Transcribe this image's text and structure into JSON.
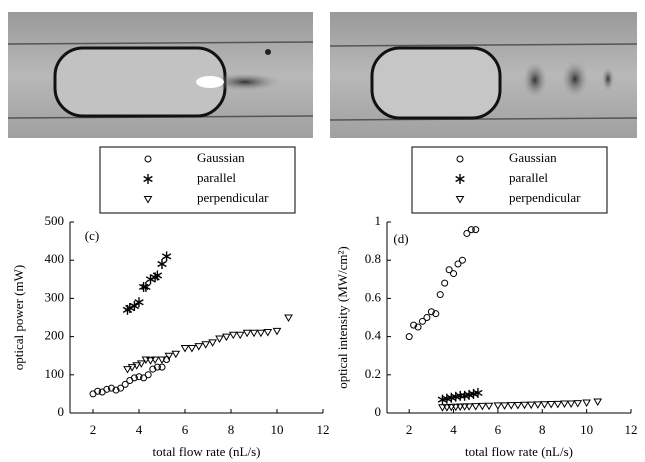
{
  "chart_data": [
    {
      "type": "scatter",
      "annotation": "(c)",
      "x_label": "total flow rate (nL/s)",
      "y_label": "optical power (mW)",
      "xlim": [
        1,
        12
      ],
      "ylim": [
        0,
        500
      ],
      "xticks": [
        2,
        4,
        6,
        8,
        10,
        12
      ],
      "yticks": [
        0,
        100,
        200,
        300,
        400,
        500
      ],
      "grid": false,
      "series": [
        {
          "name": "Gaussian",
          "color": "#000000",
          "marker": "circle",
          "x": [
            2,
            2.2,
            2.4,
            2.6,
            2.8,
            3,
            3.2,
            3.4,
            3.6,
            3.8,
            4,
            4.2,
            4.4,
            4.6,
            4.8,
            5,
            5.2
          ],
          "values": [
            50,
            57,
            55,
            62,
            65,
            60,
            65,
            75,
            85,
            92,
            95,
            92,
            100,
            115,
            120,
            120,
            140
          ]
        },
        {
          "name": "parallel",
          "color": "#000000",
          "marker": "asterisk",
          "x": [
            3.5,
            3.6,
            3.8,
            4,
            4.2,
            4.3,
            4.5,
            4.7,
            4.8,
            5,
            5.2
          ],
          "values": [
            270,
            275,
            280,
            290,
            330,
            330,
            350,
            355,
            360,
            390,
            410
          ]
        },
        {
          "name": "perpendicular",
          "color": "#000000",
          "marker": "triangle-down",
          "x": [
            3.5,
            3.7,
            3.9,
            4.1,
            4.3,
            4.5,
            4.7,
            5,
            5.3,
            5.6,
            6,
            6.3,
            6.6,
            6.9,
            7.2,
            7.5,
            7.8,
            8.1,
            8.4,
            8.7,
            9,
            9.3,
            9.6,
            10,
            10.5
          ],
          "values": [
            115,
            120,
            125,
            130,
            140,
            138,
            140,
            140,
            150,
            155,
            170,
            170,
            175,
            180,
            185,
            195,
            200,
            205,
            205,
            210,
            210,
            210,
            212,
            215,
            250
          ]
        }
      ]
    },
    {
      "type": "scatter",
      "annotation": "(d)",
      "x_label": "total flow rate (nL/s)",
      "y_label": "optical intensity (MW/cm²)",
      "xlim": [
        1,
        12
      ],
      "ylim": [
        0,
        1
      ],
      "xticks": [
        2,
        4,
        6,
        8,
        10,
        12
      ],
      "yticks": [
        0,
        0.2,
        0.4,
        0.6,
        0.8,
        1
      ],
      "grid": false,
      "series": [
        {
          "name": "Gaussian",
          "color": "#000000",
          "marker": "circle",
          "x": [
            2,
            2.2,
            2.4,
            2.6,
            2.8,
            3,
            3.2,
            3.4,
            3.6,
            3.8,
            4,
            4.2,
            4.4,
            4.6,
            4.8,
            5
          ],
          "values": [
            0.4,
            0.46,
            0.45,
            0.48,
            0.5,
            0.53,
            0.52,
            0.62,
            0.68,
            0.75,
            0.73,
            0.78,
            0.8,
            0.94,
            0.96,
            0.96
          ]
        },
        {
          "name": "parallel",
          "color": "#000000",
          "marker": "asterisk",
          "x": [
            3.5,
            3.7,
            3.9,
            4.1,
            4.3,
            4.5,
            4.7,
            4.9,
            5.1
          ],
          "values": [
            0.07,
            0.075,
            0.08,
            0.085,
            0.09,
            0.09,
            0.095,
            0.1,
            0.105
          ]
        },
        {
          "name": "perpendicular",
          "color": "#000000",
          "marker": "triangle-down",
          "x": [
            3.5,
            3.7,
            3.9,
            4.1,
            4.3,
            4.5,
            4.7,
            5,
            5.3,
            5.6,
            6,
            6.3,
            6.6,
            6.9,
            7.2,
            7.5,
            7.8,
            8.1,
            8.4,
            8.7,
            9,
            9.3,
            9.6,
            10,
            10.5
          ],
          "values": [
            0.03,
            0.03,
            0.032,
            0.033,
            0.034,
            0.035,
            0.035,
            0.036,
            0.037,
            0.038,
            0.04,
            0.04,
            0.041,
            0.042,
            0.043,
            0.044,
            0.045,
            0.046,
            0.047,
            0.048,
            0.05,
            0.05,
            0.052,
            0.055,
            0.06
          ]
        }
      ]
    }
  ]
}
